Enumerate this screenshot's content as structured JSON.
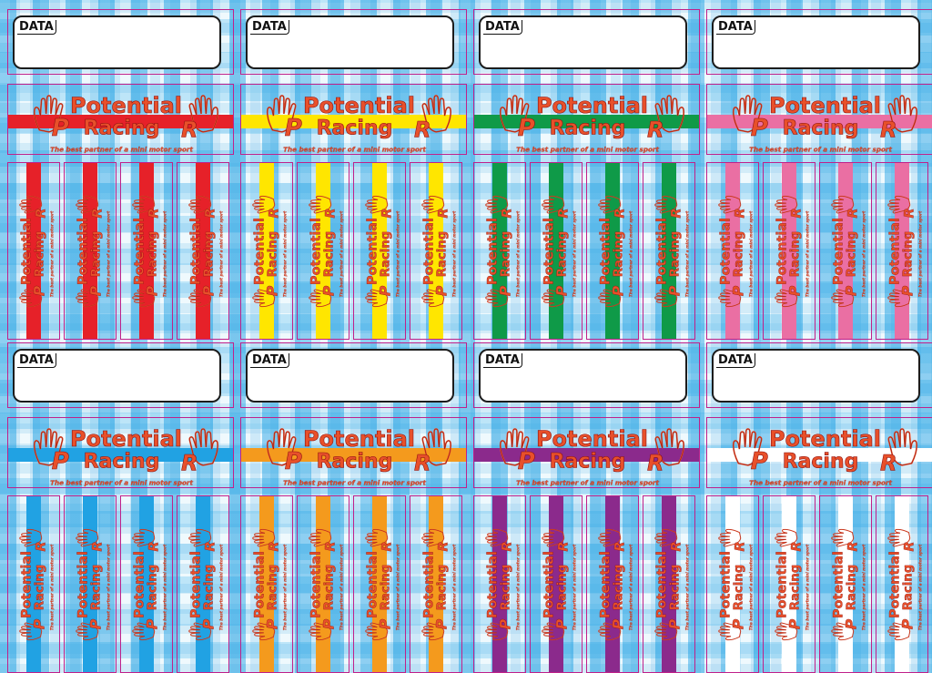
{
  "sheet": {
    "data_label": "DATA",
    "logo_line1": "Potential",
    "logo_line2": "Racing",
    "logo_mark": "R",
    "tagline": "The best partner of a mini motor sport"
  },
  "variants": [
    {
      "stripe_color": "#e62129"
    },
    {
      "stripe_color": "#ffe600"
    },
    {
      "stripe_color": "#0f9a48"
    },
    {
      "stripe_color": "#ea6fa3"
    },
    {
      "stripe_color": "#21a2e3"
    },
    {
      "stripe_color": "#f49a1d"
    },
    {
      "stripe_color": "#8b2a8c"
    },
    {
      "stripe_color": "#ffffff"
    }
  ],
  "colors": {
    "logo_fill": "#e8502a",
    "logo_outline": "#8a1010",
    "cut_line": "#c0208a"
  }
}
